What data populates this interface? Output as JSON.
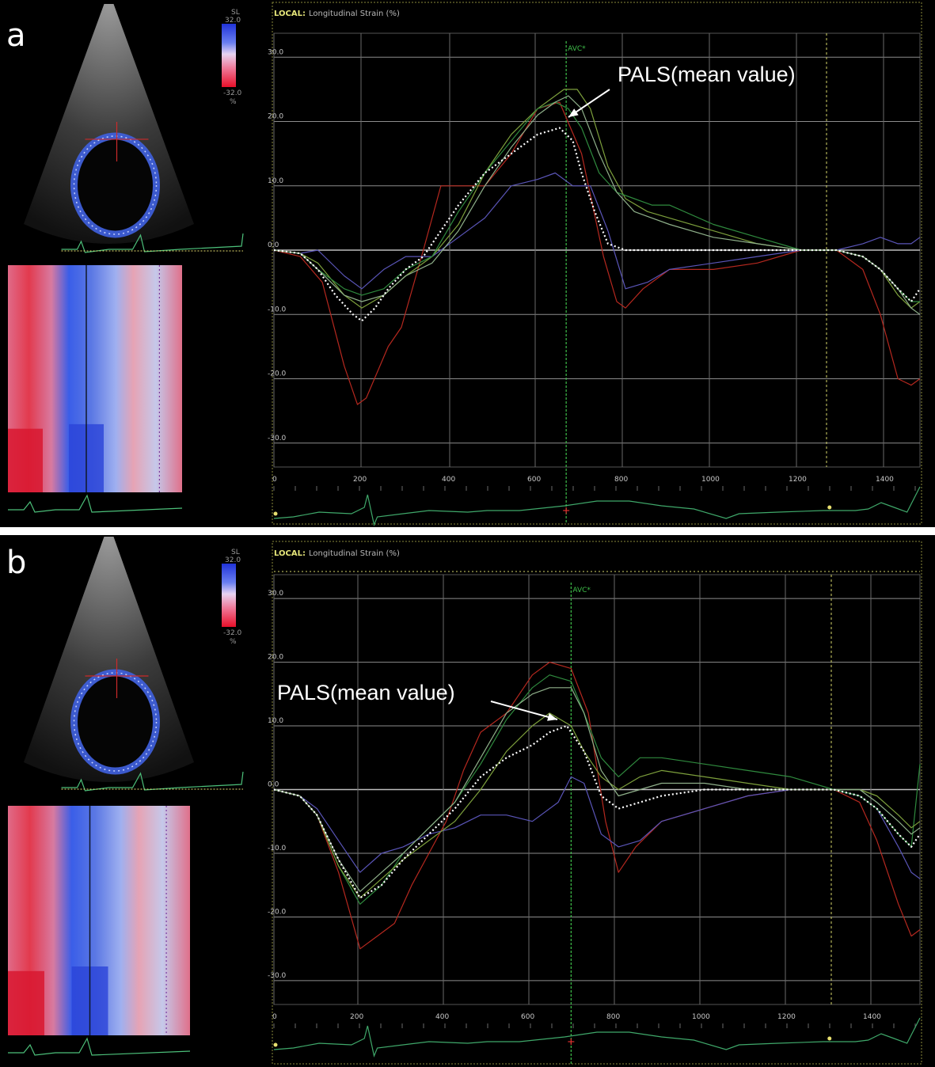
{
  "chart_data": [
    {
      "type": "line",
      "panel_label": "a",
      "title": "LOCAL: Longitudinal Strain (%)",
      "title_prefix": "LOCAL:",
      "title_rest": "Longitudinal Strain (%)",
      "colorbar": {
        "top_label": "SL",
        "max": "32.0",
        "min": "-32.0",
        "unit": "%"
      },
      "ylim": [
        -32,
        32
      ],
      "xlim": [
        0,
        1470
      ],
      "y_ticks": [
        "30.0",
        "20.0",
        "10.0",
        "0.0",
        "-10.0",
        "-20.0",
        "-30.0"
      ],
      "x_ticks": [
        "0",
        "200",
        "400",
        "600",
        "800",
        "1000",
        "1200",
        "1400"
      ],
      "marker": {
        "label": "AVC*",
        "x": 665
      },
      "annotation": {
        "text": "PALS(mean value)",
        "target_x": 665,
        "target_y": 19
      },
      "series": [
        {
          "color": "#b5281f",
          "x": [
            0,
            60,
            110,
            160,
            190,
            210,
            260,
            290,
            340,
            380,
            420,
            480,
            540,
            600,
            650,
            700,
            750,
            780,
            800,
            840,
            900,
            1000,
            1100,
            1200,
            1280,
            1340,
            1380,
            1420,
            1450,
            1470
          ],
          "values": [
            0,
            -1,
            -5,
            -18,
            -24,
            -23,
            -15,
            -12,
            0,
            10,
            10,
            10,
            15,
            22,
            23,
            15,
            -1,
            -8,
            -9,
            -6,
            -3,
            -3,
            -2,
            0,
            0,
            -3,
            -10,
            -20,
            -21,
            -20
          ]
        },
        {
          "color": "#5a55b8",
          "x": [
            0,
            60,
            100,
            160,
            200,
            250,
            300,
            360,
            420,
            480,
            540,
            600,
            640,
            680,
            720,
            760,
            800,
            850,
            900,
            1000,
            1100,
            1200,
            1280,
            1340,
            1380,
            1420,
            1450,
            1470
          ],
          "values": [
            0,
            -0.5,
            0,
            -4,
            -6,
            -3,
            -1,
            -1,
            2,
            5,
            10,
            11,
            12,
            10,
            10,
            3,
            -6,
            -5,
            -3,
            -2,
            -1,
            0,
            0,
            1,
            2,
            1,
            1,
            2
          ]
        },
        {
          "color": "#7da03c",
          "x": [
            0,
            60,
            100,
            160,
            200,
            250,
            300,
            360,
            420,
            480,
            540,
            600,
            640,
            660,
            690,
            720,
            760,
            800,
            850,
            900,
            1000,
            1100,
            1200,
            1280,
            1340,
            1380,
            1420,
            1450,
            1470
          ],
          "values": [
            0,
            -0.5,
            -2,
            -7,
            -9,
            -7,
            -4,
            -1,
            4,
            12,
            18,
            22,
            24,
            25,
            25,
            22,
            13,
            8,
            6,
            5,
            3,
            1,
            0,
            0,
            -1,
            -3,
            -7,
            -9,
            -8
          ]
        },
        {
          "color": "#2f8a3e",
          "x": [
            0,
            60,
            100,
            160,
            200,
            250,
            300,
            360,
            420,
            480,
            540,
            600,
            640,
            670,
            700,
            740,
            780,
            820,
            860,
            900,
            1000,
            1100,
            1200,
            1280,
            1340,
            1380,
            1420,
            1450,
            1470
          ],
          "values": [
            0,
            -0.5,
            -3,
            -6,
            -7,
            -6,
            -3,
            -1,
            6,
            12,
            17,
            22,
            23,
            22,
            19,
            12,
            9,
            8,
            7,
            7,
            4,
            2,
            0,
            0,
            -1,
            -3,
            -6,
            -8,
            -8
          ]
        },
        {
          "color": "#8fb08a",
          "x": [
            0,
            60,
            100,
            160,
            200,
            250,
            300,
            360,
            420,
            480,
            540,
            600,
            640,
            670,
            700,
            740,
            780,
            820,
            860,
            900,
            1000,
            1100,
            1200,
            1280,
            1340,
            1380,
            1420,
            1450,
            1470
          ],
          "values": [
            0,
            -0.5,
            -3,
            -7,
            -8,
            -7,
            -4,
            -2,
            3,
            10,
            16,
            21,
            23,
            24,
            22,
            15,
            9,
            6,
            5,
            4,
            2,
            1,
            0,
            0,
            -1,
            -3,
            -6,
            -9,
            -10
          ]
        },
        {
          "color": "#ffffff",
          "dashed": true,
          "x": [
            0,
            60,
            100,
            140,
            180,
            200,
            230,
            260,
            300,
            340,
            380,
            420,
            480,
            540,
            600,
            650,
            680,
            700,
            730,
            760,
            800,
            850,
            900,
            1000,
            1100,
            1200,
            1280,
            1340,
            1380,
            1420,
            1450,
            1470
          ],
          "values": [
            0,
            -0.5,
            -3,
            -7,
            -10,
            -11,
            -9,
            -6,
            -3,
            -1,
            3,
            7,
            12,
            15,
            18,
            19,
            17,
            12,
            6,
            1,
            0,
            0,
            0,
            0,
            0,
            0,
            0,
            -1,
            -3,
            -6,
            -8,
            -6
          ]
        }
      ]
    },
    {
      "type": "line",
      "panel_label": "b",
      "title": "LOCAL: Longitudinal Strain (%)",
      "title_prefix": "LOCAL:",
      "title_rest": "Longitudinal Strain (%)",
      "colorbar": {
        "top_label": "SL",
        "max": "32.0",
        "min": "-32.0",
        "unit": "%"
      },
      "ylim": [
        -32,
        32
      ],
      "xlim": [
        0,
        1500
      ],
      "y_ticks": [
        "30.0",
        "20.0",
        "10.0",
        "0.0",
        "-10.0",
        "-20.0",
        "-30.0"
      ],
      "x_ticks": [
        "0",
        "200",
        "400",
        "600",
        "800",
        "1000",
        "1200",
        "1400"
      ],
      "marker": {
        "label": "AVC*",
        "x": 690
      },
      "annotation": {
        "text": "PALS(mean value)",
        "target_x": 680,
        "target_y": 10
      },
      "series": [
        {
          "color": "#b5281f",
          "x": [
            0,
            60,
            100,
            150,
            200,
            240,
            280,
            320,
            360,
            400,
            440,
            480,
            540,
            600,
            640,
            690,
            730,
            770,
            800,
            840,
            900,
            1000,
            1100,
            1200,
            1300,
            1360,
            1400,
            1450,
            1480,
            1500
          ],
          "values": [
            0,
            -1,
            -4,
            -13,
            -25,
            -23,
            -21,
            -15,
            -10,
            -5,
            3,
            9,
            12,
            18,
            20,
            19,
            12,
            -5,
            -13,
            -9,
            -5,
            -3,
            -1,
            0,
            0,
            -2,
            -8,
            -18,
            -23,
            -22
          ]
        },
        {
          "color": "#5a55b8",
          "x": [
            0,
            60,
            100,
            150,
            200,
            250,
            300,
            360,
            420,
            480,
            540,
            600,
            660,
            690,
            720,
            760,
            800,
            850,
            900,
            1000,
            1100,
            1200,
            1300,
            1360,
            1400,
            1450,
            1480,
            1500
          ],
          "values": [
            0,
            -1,
            -3,
            -8,
            -13,
            -10,
            -9,
            -7,
            -6,
            -4,
            -4,
            -5,
            -2,
            2,
            1,
            -7,
            -9,
            -8,
            -5,
            -3,
            -1,
            0,
            0,
            -1,
            -3,
            -9,
            -13,
            -14
          ]
        },
        {
          "color": "#2f8a3e",
          "x": [
            0,
            60,
            100,
            150,
            200,
            250,
            300,
            360,
            420,
            480,
            540,
            600,
            640,
            690,
            720,
            760,
            800,
            850,
            900,
            1000,
            1100,
            1200,
            1300,
            1360,
            1400,
            1450,
            1480,
            1500
          ],
          "values": [
            0,
            -1,
            -4,
            -12,
            -18,
            -15,
            -10,
            -6,
            -2,
            4,
            11,
            16,
            18,
            17,
            12,
            5,
            2,
            5,
            5,
            4,
            3,
            2,
            0,
            -1,
            -3,
            -7,
            -9,
            4
          ]
        },
        {
          "color": "#7da03c",
          "x": [
            0,
            60,
            100,
            150,
            200,
            250,
            300,
            360,
            420,
            480,
            540,
            600,
            640,
            690,
            720,
            760,
            800,
            850,
            900,
            1000,
            1100,
            1200,
            1300,
            1360,
            1400,
            1450,
            1480,
            1500
          ],
          "values": [
            0,
            -1,
            -4,
            -12,
            -17,
            -14,
            -11,
            -8,
            -5,
            0,
            6,
            10,
            12,
            10,
            6,
            2,
            0,
            2,
            3,
            2,
            1,
            0,
            0,
            0,
            -1,
            -4,
            -6,
            -5
          ]
        },
        {
          "color": "#8fb08a",
          "x": [
            0,
            60,
            100,
            150,
            200,
            250,
            300,
            360,
            420,
            480,
            540,
            600,
            640,
            690,
            720,
            760,
            800,
            850,
            900,
            1000,
            1100,
            1200,
            1300,
            1360,
            1400,
            1450,
            1480,
            1500
          ],
          "values": [
            0,
            -1,
            -4,
            -11,
            -16,
            -13,
            -10,
            -6,
            -2,
            5,
            12,
            15,
            16,
            16,
            12,
            3,
            -1,
            0,
            1,
            1,
            0,
            0,
            0,
            0,
            -2,
            -5,
            -7,
            -6
          ]
        },
        {
          "color": "#ffffff",
          "dashed": true,
          "x": [
            0,
            60,
            100,
            150,
            200,
            250,
            300,
            360,
            420,
            480,
            540,
            600,
            640,
            680,
            720,
            760,
            800,
            850,
            900,
            1000,
            1100,
            1200,
            1300,
            1360,
            1400,
            1450,
            1480,
            1500
          ],
          "values": [
            0,
            -1,
            -4,
            -11,
            -17,
            -15,
            -11,
            -7,
            -3,
            2,
            5,
            7,
            9,
            10,
            6,
            -1,
            -3,
            -2,
            -1,
            0,
            0,
            0,
            0,
            -1,
            -3,
            -7,
            -9,
            -7
          ]
        }
      ]
    }
  ]
}
